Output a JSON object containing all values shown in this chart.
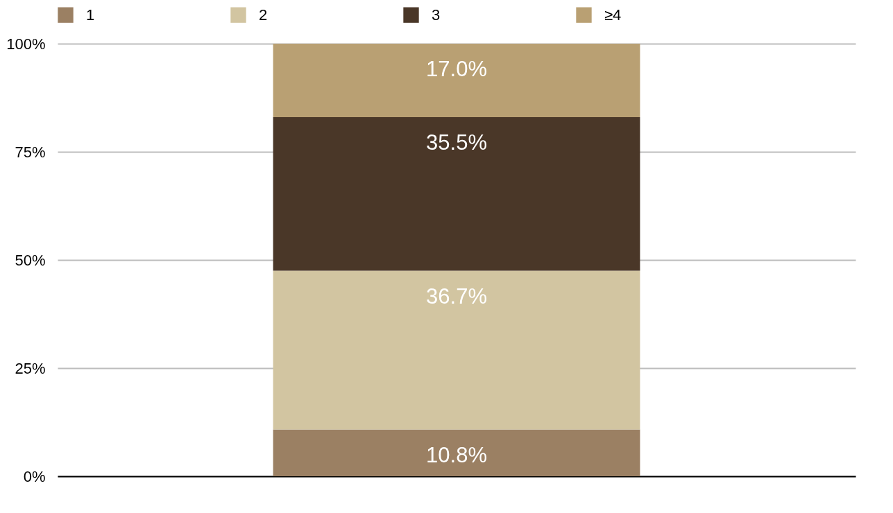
{
  "chart_data": {
    "type": "bar",
    "stacked": true,
    "categories": [
      null
    ],
    "series": [
      {
        "name": "1",
        "color": "#9b8063",
        "values": [
          10.8
        ],
        "value_labels": [
          "10.8%"
        ]
      },
      {
        "name": "2",
        "color": "#d2c5a1",
        "values": [
          36.7
        ],
        "value_labels": [
          "36.7%"
        ]
      },
      {
        "name": "3",
        "color": "#4a3728",
        "values": [
          35.5
        ],
        "value_labels": [
          "35.5%"
        ]
      },
      {
        "name": "≥4",
        "color": "#b9a073",
        "values": [
          17.0
        ],
        "value_labels": [
          "17.0%"
        ]
      }
    ],
    "ylim": [
      0,
      100
    ],
    "yticks": [
      {
        "value": 0,
        "label": "0%"
      },
      {
        "value": 25,
        "label": "25%"
      },
      {
        "value": 50,
        "label": "50%"
      },
      {
        "value": 75,
        "label": "75%"
      },
      {
        "value": 100,
        "label": "100%"
      }
    ],
    "grid": "y",
    "legend": "top",
    "tick_labels": "y"
  }
}
